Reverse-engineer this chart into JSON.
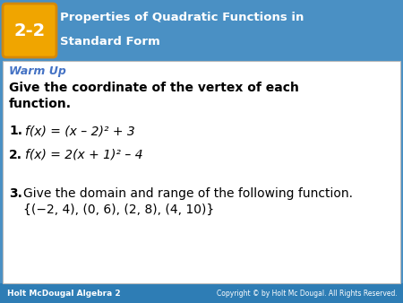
{
  "header_bg_color": "#4a90c4",
  "badge_bg_color": "#f0a500",
  "badge_text": "2-2",
  "header_title_line1": "Properties of Quadratic Functions in",
  "header_title_line2": "Standard Form",
  "body_bg_color": "#ffffff",
  "warm_up_color": "#4472c4",
  "warm_up_text": "Warm Up",
  "item1_bold": "1.",
  "item1_text": "f(x) = (x – 2)² + 3",
  "item2_bold": "2.",
  "item2_text": "f(x) = 2(x + 1)² – 4",
  "item3_bold": "3.",
  "item3_text": "Give the domain and range of the following function.",
  "item3_sub": "{(−2, 4), (0, 6), (2, 8), (4, 10)}",
  "footer_bg_color": "#2e7db5",
  "footer_left_text": "Holt McDougal Algebra 2",
  "footer_right_text": "Copyright © by Holt Mc Dougal. All Rights Reserved."
}
